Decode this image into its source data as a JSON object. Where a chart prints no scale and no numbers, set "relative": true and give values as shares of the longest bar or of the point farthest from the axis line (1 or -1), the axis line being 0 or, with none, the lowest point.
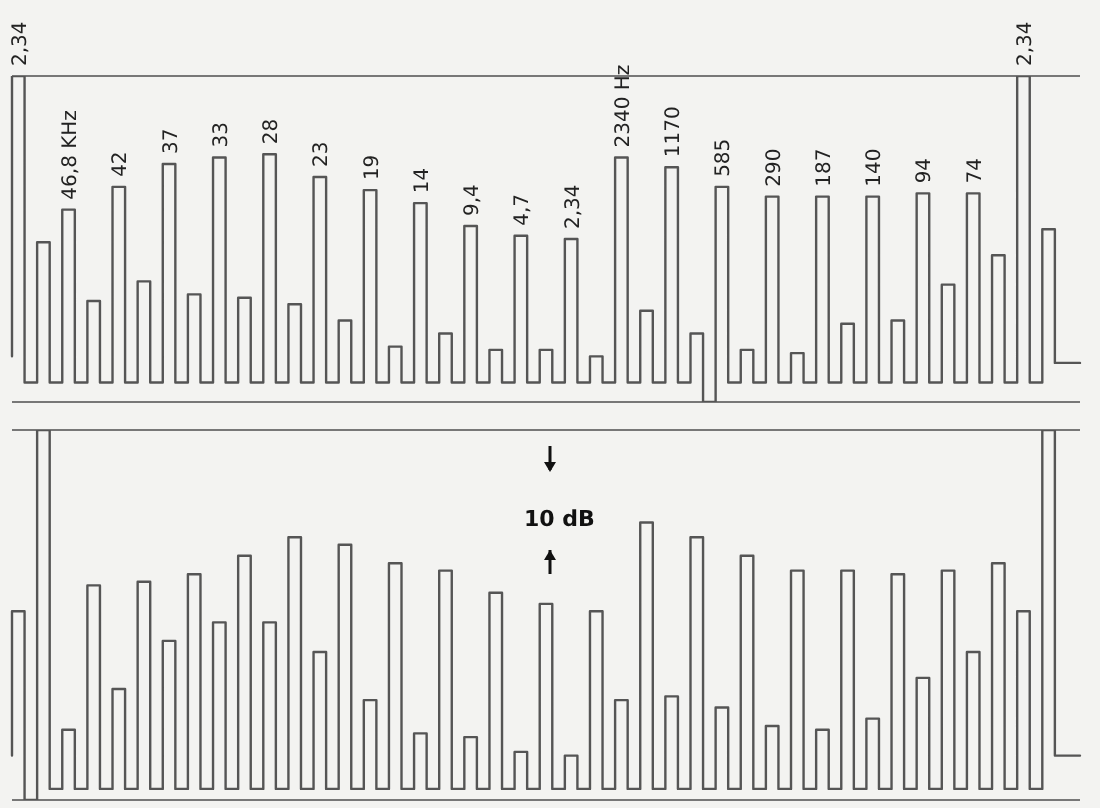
{
  "chart_data": [
    {
      "type": "step",
      "relative": true,
      "grid": "y",
      "legend": false,
      "marker": "none",
      "tick_labels": "x",
      "categories": [
        null,
        "2,34",
        null,
        null,
        null,
        "46,8 KHz",
        null,
        null,
        null,
        "42",
        null,
        null,
        null,
        "37",
        null,
        null,
        null,
        "33",
        null,
        null,
        null,
        "28",
        null,
        null,
        null,
        "23",
        null,
        null,
        null,
        "19",
        null,
        null,
        null,
        "14",
        null,
        null,
        null,
        "9,4",
        null,
        null,
        null,
        "4,7",
        null,
        null,
        null,
        "2,34",
        null,
        null,
        null,
        "2340 Hz",
        null,
        null,
        null,
        "1170",
        null,
        null,
        null,
        "585",
        null,
        null,
        null,
        "290",
        null,
        null,
        null,
        "187",
        null,
        null,
        null,
        "140",
        null,
        null,
        null,
        "94",
        null,
        null,
        null,
        "74",
        null,
        null,
        null,
        "2,34",
        null,
        null,
        null,
        null
      ],
      "series": [
        {
          "color": "#555555",
          "values": [
            0.14,
            1.0,
            0.06,
            0.49,
            0.06,
            0.59,
            0.06,
            0.31,
            0.06,
            0.66,
            0.06,
            0.37,
            0.06,
            0.73,
            0.06,
            0.33,
            0.06,
            0.75,
            0.06,
            0.32,
            0.06,
            0.76,
            0.06,
            0.3,
            0.06,
            0.69,
            0.06,
            0.25,
            0.06,
            0.65,
            0.06,
            0.17,
            0.06,
            0.61,
            0.06,
            0.21,
            0.06,
            0.54,
            0.06,
            0.16,
            0.06,
            0.51,
            0.06,
            0.16,
            0.06,
            0.5,
            0.06,
            0.14,
            0.06,
            0.75,
            0.06,
            0.28,
            0.06,
            0.72,
            0.06,
            0.21,
            0.0,
            0.66,
            0.06,
            0.16,
            0.06,
            0.63,
            0.06,
            0.15,
            0.06,
            0.63,
            0.06,
            0.24,
            0.06,
            0.63,
            0.06,
            0.25,
            0.06,
            0.64,
            0.06,
            0.36,
            0.06,
            0.64,
            0.06,
            0.45,
            0.06,
            1.0,
            0.06,
            0.53,
            0.12,
            0.12
          ]
        }
      ]
    },
    {
      "type": "step",
      "relative": true,
      "grid": "y",
      "legend": false,
      "marker": "none",
      "tick_labels": "x",
      "annotations": [
        "10 dB"
      ],
      "categories": [
        null,
        null,
        null,
        null,
        null,
        null,
        null,
        null,
        null,
        null,
        null,
        null,
        null,
        null,
        null,
        null,
        null,
        null,
        null,
        null,
        null,
        null,
        null,
        null,
        null,
        null,
        null,
        null,
        null,
        null,
        null,
        null,
        null,
        null,
        null,
        null,
        null,
        null,
        null,
        null,
        null,
        null,
        null,
        null,
        null,
        null,
        null,
        null,
        null,
        null,
        null,
        null,
        null,
        null,
        null,
        null,
        null,
        null,
        null,
        null,
        null,
        null,
        null,
        null,
        null,
        null,
        null,
        null,
        null,
        null,
        null,
        null,
        null,
        null,
        null,
        null,
        null,
        null,
        null,
        null,
        null,
        null,
        null,
        null,
        null,
        null
      ],
      "series": [
        {
          "color": "#555555",
          "values": [
            0.12,
            0.51,
            0.0,
            1.0,
            0.03,
            0.19,
            0.03,
            0.58,
            0.03,
            0.3,
            0.03,
            0.59,
            0.03,
            0.43,
            0.03,
            0.61,
            0.03,
            0.48,
            0.03,
            0.66,
            0.03,
            0.48,
            0.03,
            0.71,
            0.03,
            0.4,
            0.03,
            0.69,
            0.03,
            0.27,
            0.03,
            0.64,
            0.03,
            0.18,
            0.03,
            0.62,
            0.03,
            0.17,
            0.03,
            0.56,
            0.03,
            0.13,
            0.03,
            0.53,
            0.03,
            0.12,
            0.03,
            0.51,
            0.03,
            0.27,
            0.03,
            0.75,
            0.03,
            0.28,
            0.03,
            0.71,
            0.03,
            0.25,
            0.03,
            0.66,
            0.03,
            0.2,
            0.03,
            0.62,
            0.03,
            0.19,
            0.03,
            0.62,
            0.03,
            0.22,
            0.03,
            0.61,
            0.03,
            0.33,
            0.03,
            0.62,
            0.03,
            0.4,
            0.03,
            0.64,
            0.03,
            0.51,
            0.03,
            1.0,
            0.12,
            0.12
          ]
        }
      ]
    }
  ]
}
